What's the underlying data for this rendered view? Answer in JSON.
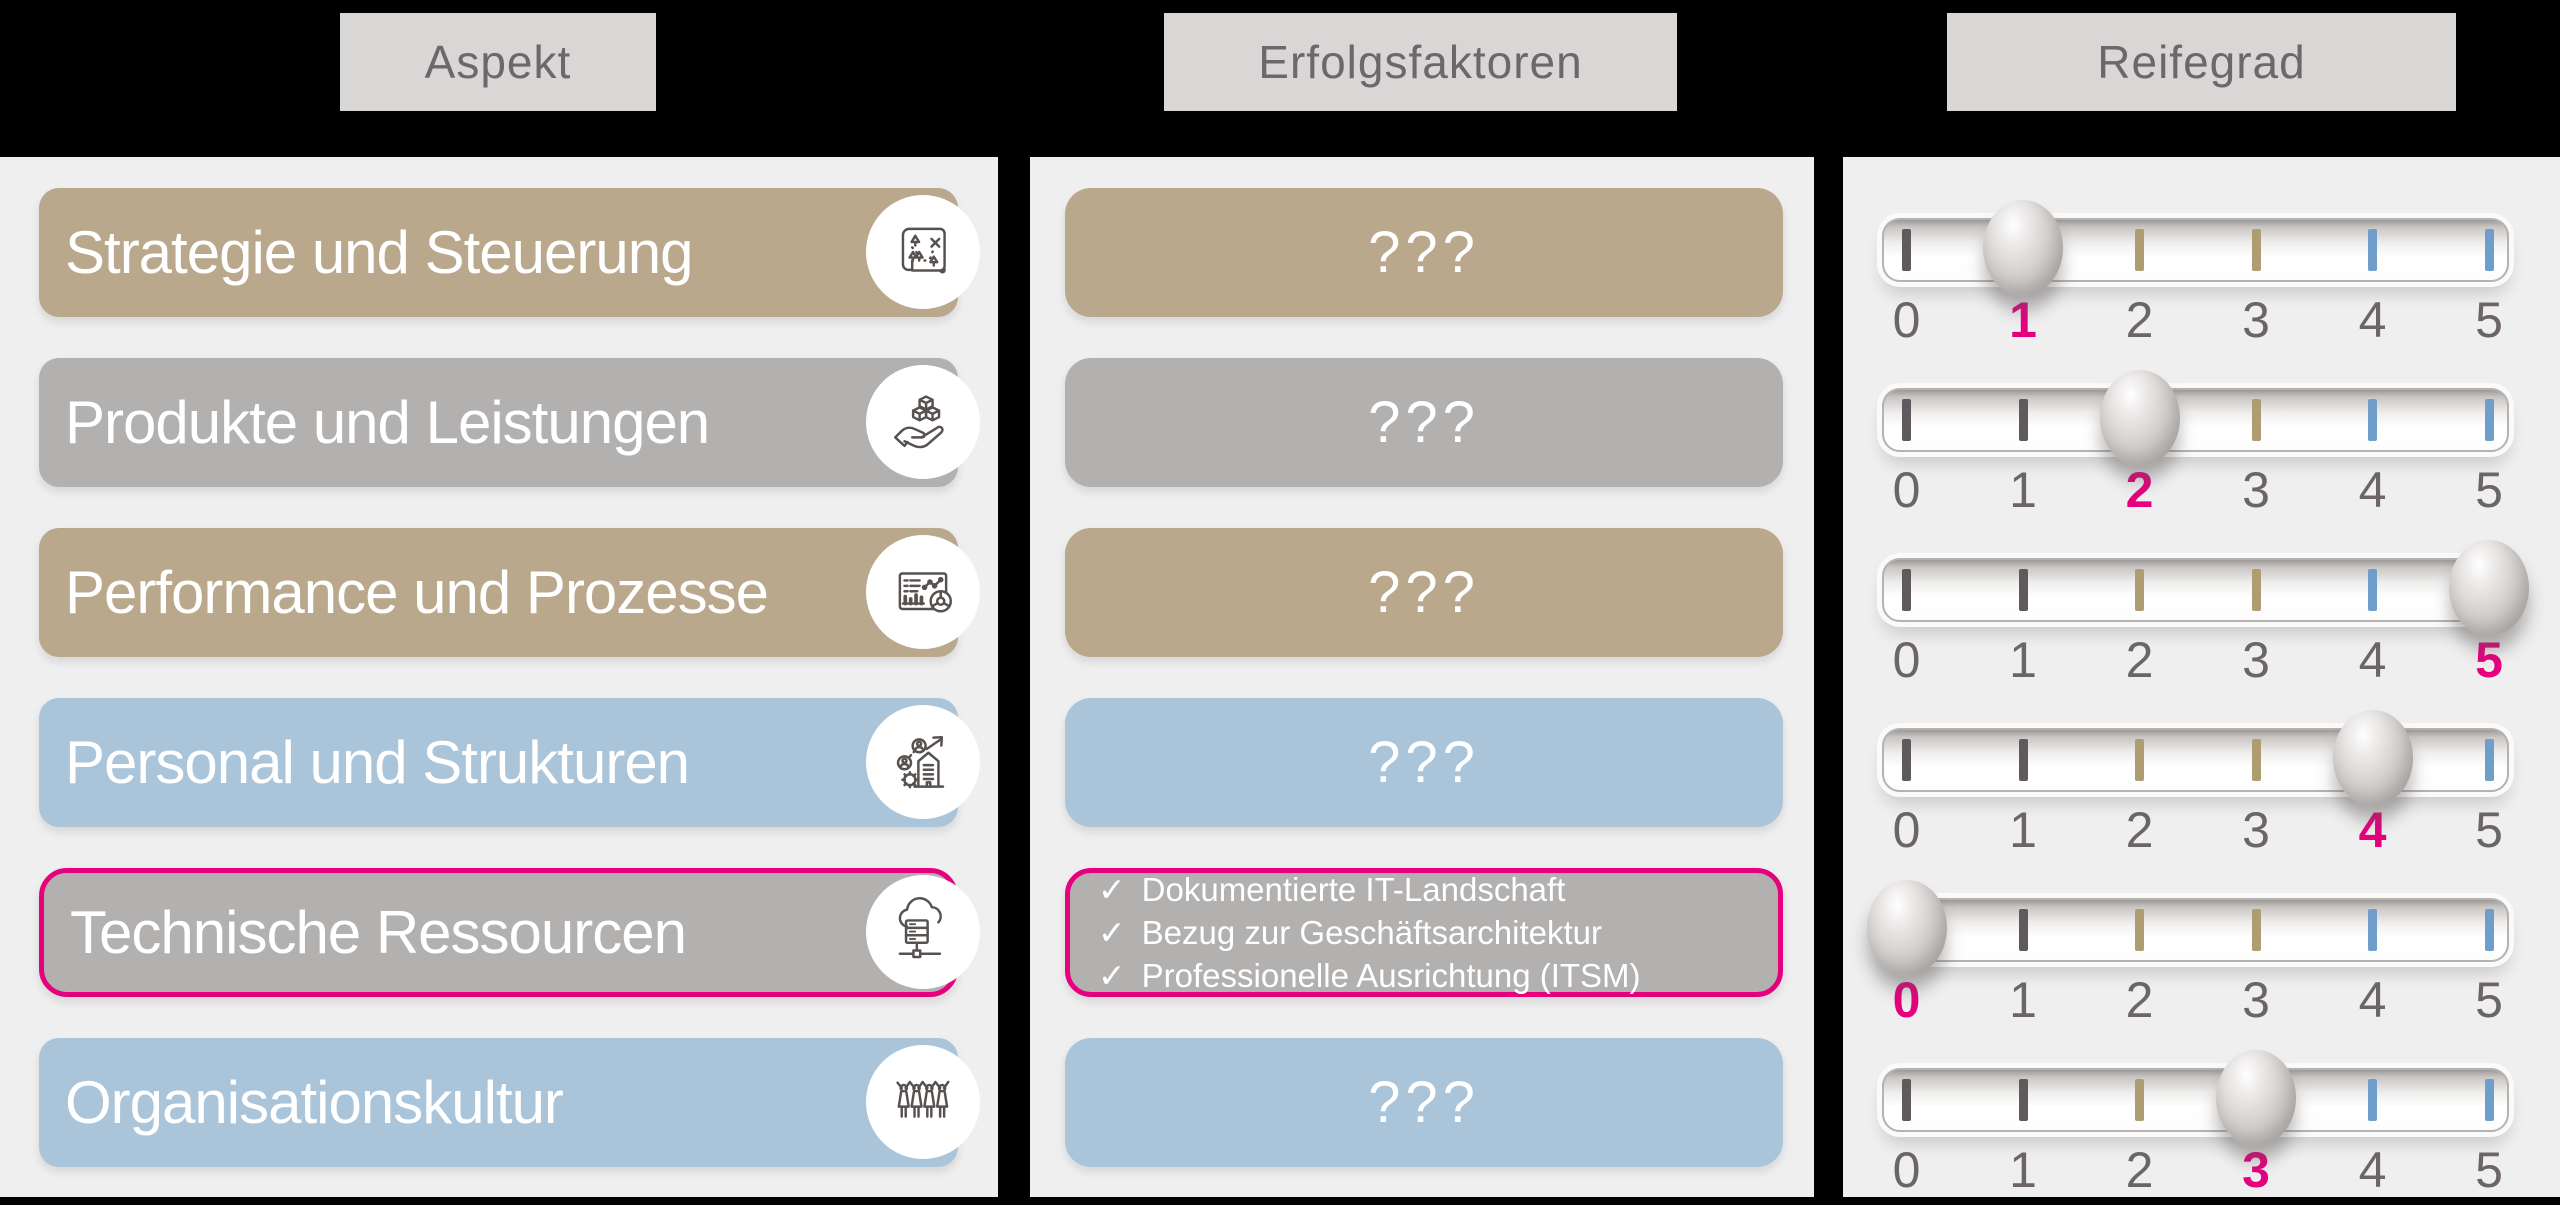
{
  "columns": {
    "aspect_header": "Aspekt",
    "factors_header": "Erfolgsfaktoren",
    "maturity_header": "Reifegrad"
  },
  "aspects": [
    {
      "label": "Strategie und Steuerung",
      "icon": "map-strategy-icon",
      "color": "tan",
      "highlighted": false
    },
    {
      "label": "Produkte und Leistungen",
      "icon": "hand-cubes-icon",
      "color": "gray",
      "highlighted": false
    },
    {
      "label": "Performance und Prozesse",
      "icon": "dashboard-chart-icon",
      "color": "tan",
      "highlighted": false
    },
    {
      "label": "Personal und Strukturen",
      "icon": "org-growth-icon",
      "color": "blue",
      "highlighted": false
    },
    {
      "label": "Technische Ressourcen",
      "icon": "cloud-server-icon",
      "color": "gray",
      "highlighted": true
    },
    {
      "label": "Organisationskultur",
      "icon": "team-people-icon",
      "color": "blue",
      "highlighted": false
    }
  ],
  "factors": [
    {
      "type": "unknown",
      "text": "???",
      "color": "tan",
      "highlighted": false
    },
    {
      "type": "unknown",
      "text": "???",
      "color": "gray",
      "highlighted": false
    },
    {
      "type": "unknown",
      "text": "???",
      "color": "tan",
      "highlighted": false
    },
    {
      "type": "unknown",
      "text": "???",
      "color": "blue",
      "highlighted": false
    },
    {
      "type": "list",
      "color": "gray",
      "highlighted": true,
      "check_glyph": "✓",
      "items": [
        "Dokumentierte IT-Landschaft",
        "Bezug zur Geschäftsarchitektur",
        "Professionelle Ausrichtung (ITSM)"
      ]
    },
    {
      "type": "unknown",
      "text": "???",
      "color": "blue",
      "highlighted": false
    }
  ],
  "sliders": {
    "scale": [
      "0",
      "1",
      "2",
      "3",
      "4",
      "5"
    ],
    "values": [
      1,
      2,
      5,
      4,
      0,
      3
    ],
    "tick_colors": [
      "#5f5a5e",
      "#5f5a5e",
      "#ad9d71",
      "#ad9d71",
      "#6e9ec9",
      "#6e9ec9"
    ]
  },
  "colors": {
    "background": "#000000",
    "panel": "#efeff0",
    "header_bg": "#d8d7d5",
    "header_text": "#6d666a",
    "tan": "#b9a88c",
    "gray": "#b3b1b0",
    "blue": "#aac4da",
    "magenta_accent": "#e6007e",
    "number_gray": "#6b6569",
    "icon_stroke": "#57524f",
    "row_text": "#ffffff"
  }
}
